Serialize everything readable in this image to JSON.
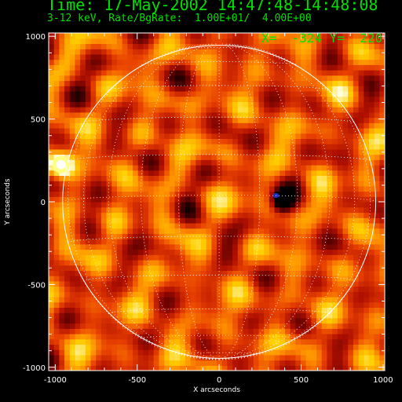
{
  "header": {
    "time_label": "Time: 17-May-2002 14:47:48-14:48:08",
    "energy_label": "3-12 keV, Rate/BgRate:  1.00E+01/  4.00E+00"
  },
  "cursor_readout": "X=  -324 Y=  220",
  "colors": {
    "background": "#000000",
    "text": "#00e000",
    "axes": "#ffffff",
    "limb": "#ffffff",
    "colormap": [
      "#000000",
      "#5a0000",
      "#b01000",
      "#e84000",
      "#ff9000",
      "#ffd000",
      "#ffffe0"
    ]
  },
  "chart_data": {
    "type": "heatmap",
    "title": "Time: 17-May-2002 14:47:48-14:48:08",
    "subtitle": "3-12 keV, Rate/BgRate:  1.00E+01/  4.00E+00",
    "xlabel": "X arcseconds",
    "ylabel": "Y arcseconds",
    "xlim": [
      -1040,
      1010
    ],
    "ylim": [
      -1020,
      1020
    ],
    "xticks": [
      -1000,
      -500,
      0,
      500,
      1000
    ],
    "yticks": [
      -1000,
      -500,
      0,
      500,
      1000
    ],
    "xtick_labels": [
      "-1000",
      "-500",
      "0",
      "500",
      "1000"
    ],
    "ytick_labels": [
      "-1000",
      "-500",
      "0",
      "500",
      "1000"
    ],
    "solar_limb": {
      "center": [
        0,
        0
      ],
      "radius": 955
    },
    "grid": "heliographic 15-degree, dotted",
    "colormap": "red-temperature",
    "features": [
      {
        "name": "bright source near east limb",
        "x": -965,
        "y": 225,
        "level": "max"
      },
      {
        "name": "dark blue spot",
        "x": 385,
        "y": 5,
        "level": "min"
      }
    ]
  }
}
